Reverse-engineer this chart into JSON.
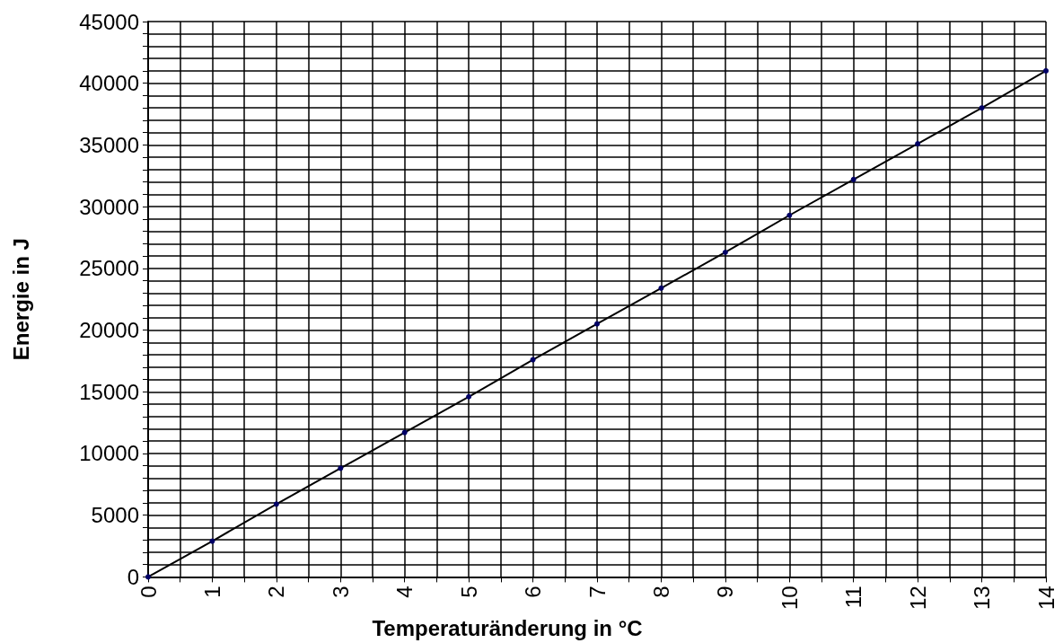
{
  "chart_data": {
    "type": "line",
    "xlabel": "Temperaturänderung in °C",
    "ylabel": "Energie in J",
    "x": [
      0,
      1,
      2,
      3,
      4,
      5,
      6,
      7,
      8,
      9,
      10,
      11,
      12,
      13,
      14
    ],
    "series": [
      {
        "color": "#000066",
        "values": [
          0,
          2900,
          5900,
          8800,
          11700,
          14600,
          17600,
          20500,
          23400,
          26300,
          29300,
          32200,
          35100,
          38000,
          41000
        ]
      }
    ],
    "xlim": [
      0,
      14
    ],
    "xticks": [
      0,
      1,
      2,
      3,
      4,
      5,
      6,
      7,
      8,
      9,
      10,
      11,
      12,
      13,
      14
    ],
    "ylim": [
      0,
      45000
    ],
    "yticks": [
      0,
      5000,
      10000,
      15000,
      20000,
      25000,
      30000,
      35000,
      40000,
      45000
    ],
    "grid": true,
    "marker": "circle",
    "line_style": "solid"
  }
}
